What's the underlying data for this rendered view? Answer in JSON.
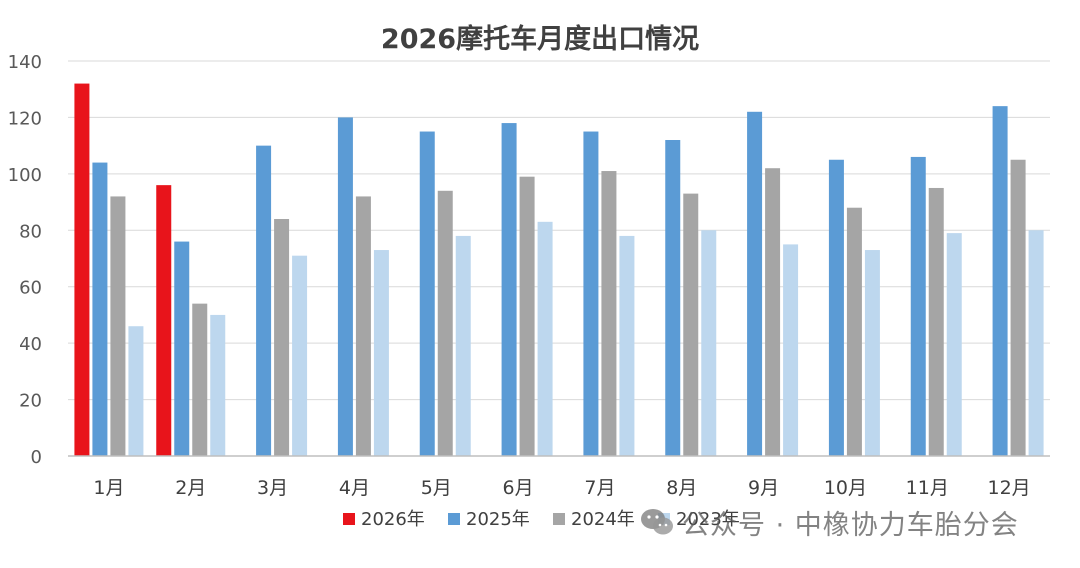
{
  "chart_data": {
    "type": "bar",
    "title": "2026摩托车月度出口情况",
    "categories": [
      "1月",
      "2月",
      "3月",
      "4月",
      "5月",
      "6月",
      "7月",
      "8月",
      "9月",
      "10月",
      "11月",
      "12月"
    ],
    "ylim": [
      0,
      140
    ],
    "yticks": [
      0,
      20,
      40,
      60,
      80,
      100,
      120,
      140
    ],
    "grid": true,
    "legend_position": "bottom",
    "series": [
      {
        "name": "2026年",
        "color": "#e8141b",
        "values": [
          132,
          96,
          null,
          null,
          null,
          null,
          null,
          null,
          null,
          null,
          null,
          null
        ]
      },
      {
        "name": "2025年",
        "color": "#5b9bd5",
        "values": [
          104,
          76,
          110,
          120,
          115,
          118,
          115,
          112,
          122,
          105,
          106,
          124
        ]
      },
      {
        "name": "2024年",
        "color": "#a5a5a5",
        "values": [
          92,
          54,
          84,
          92,
          94,
          99,
          101,
          93,
          102,
          88,
          95,
          105
        ]
      },
      {
        "name": "2023年",
        "color": "#bdd7ee",
        "values": [
          46,
          50,
          71,
          73,
          78,
          83,
          78,
          80,
          75,
          73,
          79,
          80
        ]
      }
    ]
  },
  "watermark": {
    "icon": "wechat-icon",
    "text": "公众号 · 中橡协力车胎分会"
  }
}
